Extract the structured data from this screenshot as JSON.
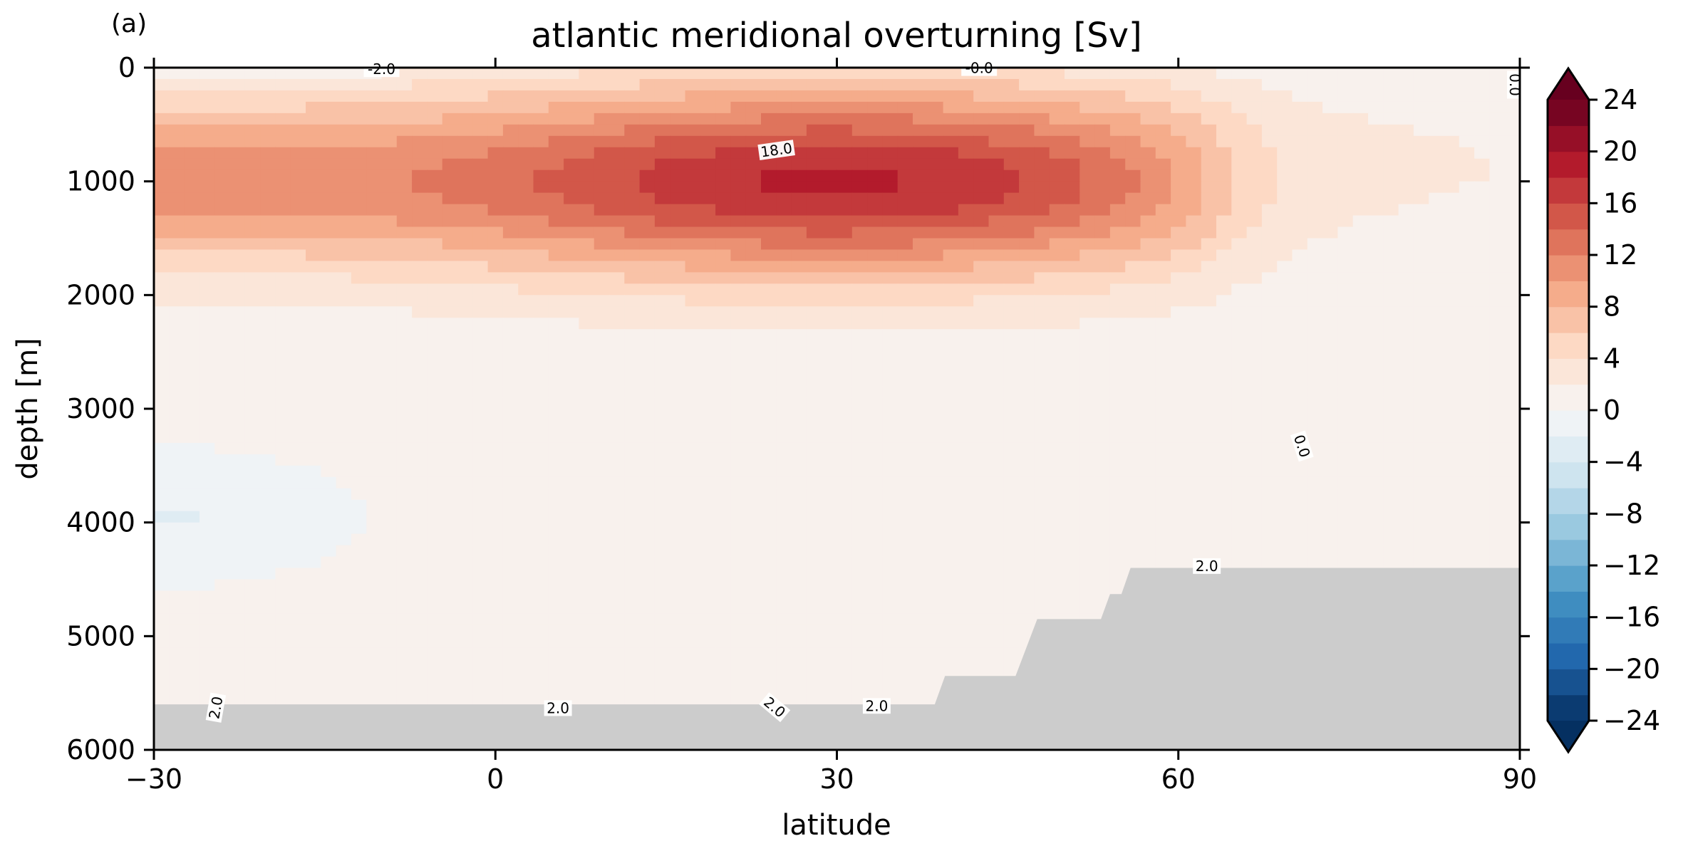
{
  "chart_data": {
    "type": "contourf",
    "panel_label": "(a)",
    "title": "atlantic meridional overturning [Sv]",
    "xlabel": "latitude",
    "ylabel": "depth [m]",
    "xlim": [
      -30,
      90
    ],
    "ylim": [
      6000,
      0
    ],
    "y_inverted": true,
    "x_ticks": [
      -30,
      0,
      30,
      60,
      90
    ],
    "x_tick_labels": [
      "−30",
      "0",
      "30",
      "60",
      "90"
    ],
    "y_ticks": [
      0,
      1000,
      2000,
      3000,
      4000,
      5000,
      6000
    ],
    "y_tick_labels": [
      "0",
      "1000",
      "2000",
      "3000",
      "4000",
      "5000",
      "6000"
    ],
    "colorbar": {
      "colormap": "RdBu_r",
      "levels_min": -24,
      "levels_max": 24,
      "level_step": 2,
      "extend": "both",
      "ticks": [
        24,
        20,
        16,
        12,
        8,
        4,
        0,
        -4,
        -8,
        -12,
        -16,
        -20,
        -24
      ],
      "tick_labels": [
        "24",
        "20",
        "16",
        "12",
        "8",
        "4",
        "0",
        "−4",
        "−8",
        "−12",
        "−16",
        "−20",
        "−24"
      ]
    },
    "circulation_cell": {
      "max_value": 18.0,
      "max_at": {
        "latitude": 30,
        "depth": 1000
      },
      "southern_boundary": {
        "latitude": -30,
        "value": 14
      },
      "northward_extent_latitude": 65,
      "lower_limit_depth": 3000
    },
    "bathymetry_mask": [
      {
        "latitude": -30,
        "depth": 5600
      },
      {
        "latitude": 38.6,
        "depth": 5600
      },
      {
        "latitude": 39.5,
        "depth": 5350
      },
      {
        "latitude": 45.7,
        "depth": 5350
      },
      {
        "latitude": 47.6,
        "depth": 4850
      },
      {
        "latitude": 53.2,
        "depth": 4850
      },
      {
        "latitude": 54.0,
        "depth": 4630
      },
      {
        "latitude": 55.0,
        "depth": 4630
      },
      {
        "latitude": 55.8,
        "depth": 4400
      },
      {
        "latitude": 90,
        "depth": 4400
      }
    ],
    "contour_labels": [
      {
        "text": "-2.0",
        "latitude": -10,
        "depth": 20
      },
      {
        "text": "-0.0",
        "latitude": 42.5,
        "depth": 10
      },
      {
        "text": "0.0",
        "latitude": 89.5,
        "depth": 150
      },
      {
        "text": "18.0",
        "latitude": 24.7,
        "depth": 730
      },
      {
        "text": "0.0",
        "latitude": 70.8,
        "depth": 3330
      },
      {
        "text": "2.0",
        "latitude": 62.5,
        "depth": 4390
      },
      {
        "text": "2.0",
        "latitude": -24.5,
        "depth": 5630
      },
      {
        "text": "2.0",
        "latitude": 5.5,
        "depth": 5640
      },
      {
        "text": "2.0",
        "latitude": 24.5,
        "depth": 5630
      },
      {
        "text": "2.0",
        "latitude": 33.5,
        "depth": 5620
      }
    ]
  }
}
